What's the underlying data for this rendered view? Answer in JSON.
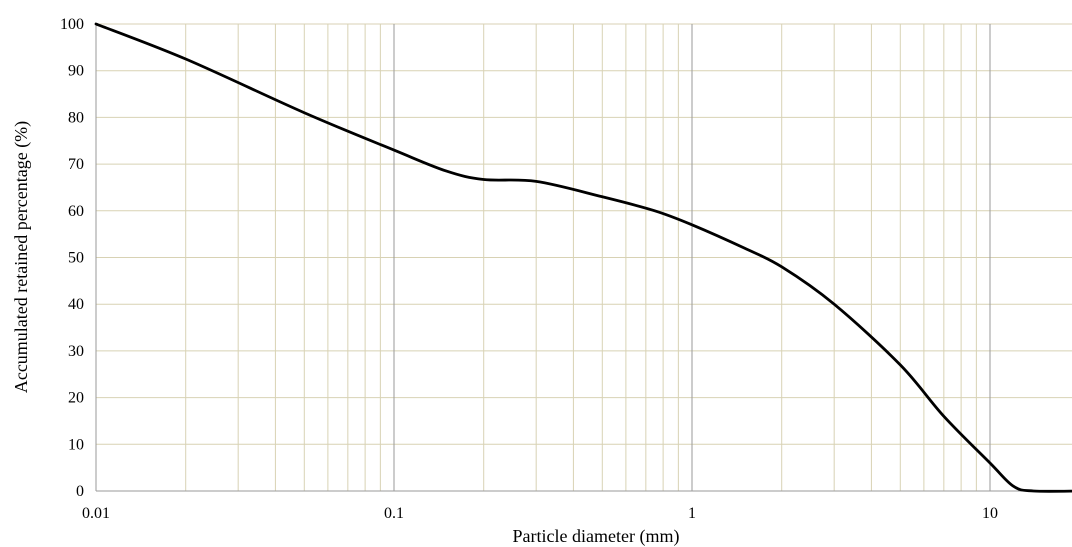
{
  "chart_data": {
    "type": "line",
    "title": "",
    "xlabel": "Particle diameter (mm)",
    "ylabel": "Accumulated retained percentage (%)",
    "x_scale": "log",
    "xlim": [
      0.01,
      20
    ],
    "ylim": [
      0,
      100
    ],
    "x_tick_labels": [
      "0.01",
      "0.1",
      "1",
      "10"
    ],
    "y_tick_labels": [
      "0",
      "10",
      "20",
      "30",
      "40",
      "50",
      "60",
      "70",
      "80",
      "90",
      "100"
    ],
    "grid": true,
    "legend": "none",
    "colors": {
      "line": "#000000",
      "major_grid": "#9a9a9a",
      "minor_grid": "#d8d2b4",
      "background": "#ffffff"
    },
    "series": [
      {
        "x": [
          0.01,
          0.02,
          0.05,
          0.1,
          0.15,
          0.2,
          0.3,
          0.5,
          0.75,
          1,
          1.5,
          2,
          3,
          5,
          7,
          10,
          12,
          14,
          20
        ],
        "values": [
          100,
          92.5,
          81,
          73,
          68.5,
          66.7,
          66.3,
          63,
          60,
          57,
          52,
          48,
          40,
          27,
          16,
          6,
          1,
          0,
          0
        ]
      }
    ]
  }
}
